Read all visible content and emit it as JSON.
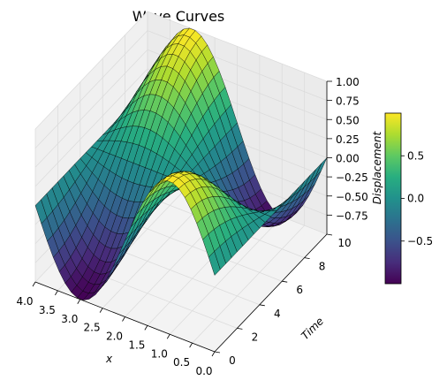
{
  "chart_data": {
    "type": "surface",
    "title": "Wave Curves",
    "xlabel": "x",
    "ylabel": "Time",
    "zlabel": "Displacement",
    "xlim": [
      0.0,
      4.0
    ],
    "ylim": [
      0,
      10
    ],
    "zlim": [
      -1.0,
      1.0
    ],
    "x_ticks": [
      "0.0",
      "0.5",
      "1.0",
      "1.5",
      "2.0",
      "2.5",
      "3.0",
      "3.5",
      "4.0"
    ],
    "y_ticks": [
      "0",
      "2",
      "4",
      "6",
      "8",
      "10"
    ],
    "z_ticks": [
      "1.00",
      "0.75",
      "0.50",
      "0.25",
      "0.00",
      "−0.25",
      "−0.50",
      "−0.75"
    ],
    "colorbar": {
      "cmap": "viridis",
      "min": -1.0,
      "max": 1.0,
      "ticks": [
        "0.5",
        "0.0",
        "−0.5"
      ]
    },
    "surface_function": "sin(pi*x/2)*cos(pi*t/10)",
    "grid_x_samples": 30,
    "grid_t_samples": 20,
    "grid": true,
    "colors": {
      "pane": "#f3f3f3",
      "gridline": "#dcdcdc",
      "edge": "#000000"
    }
  }
}
